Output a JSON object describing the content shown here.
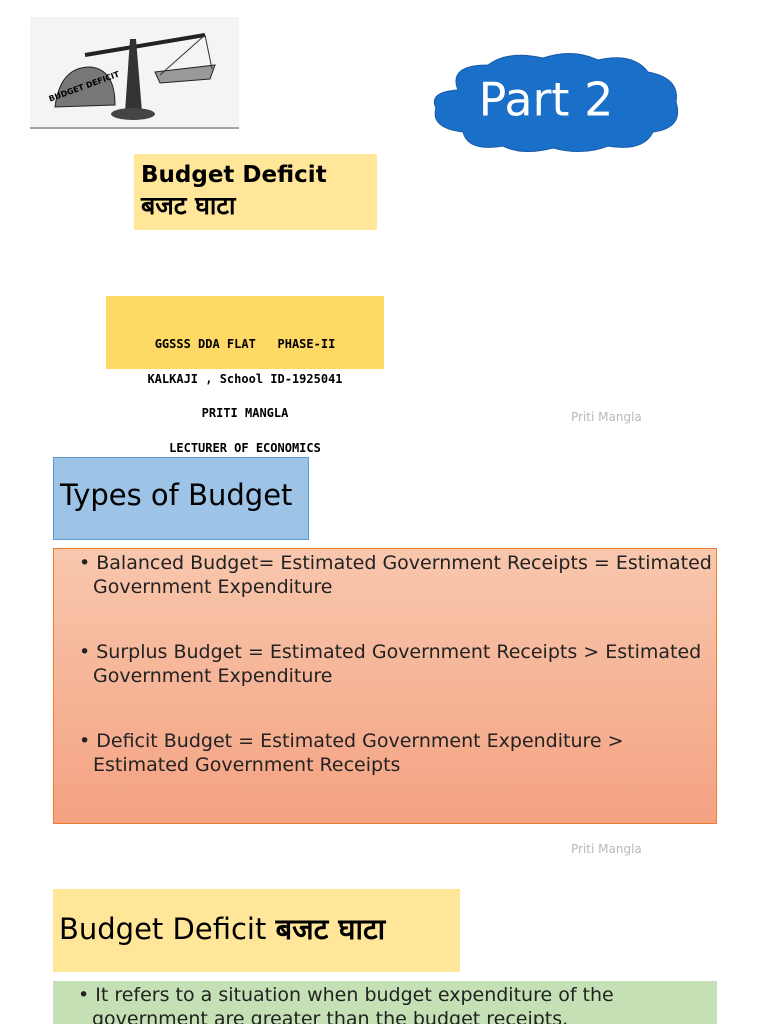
{
  "slide1": {
    "illustration_label": "BUDGET DEFICIT",
    "badge": "Part 2",
    "title": "Budget Deficit",
    "title_hindi": "बजट घाटा",
    "school": [
      "GGSSS DDA FLAT   PHASE-II",
      "KALKAJI , School ID-1925041",
      "PRITI MANGLA",
      "LECTURER OF ECONOMICS"
    ],
    "footer": "Priti Mangla"
  },
  "slide2": {
    "title": "Types of Budget",
    "bullets": [
      "Balanced Budget= Estimated Government Receipts = Estimated Government Expenditure",
      "Surplus Budget = Estimated Government Receipts > Estimated Government Expenditure",
      "Deficit Budget = Estimated Government Expenditure > Estimated Government Receipts"
    ],
    "footer": "Priti Mangla"
  },
  "slide3": {
    "title": "Budget Deficit",
    "title_hindi": "बजट घाटा",
    "bullets": [
      "It refers to a situation when budget expenditure of the government are greater than the budget receipts."
    ]
  }
}
